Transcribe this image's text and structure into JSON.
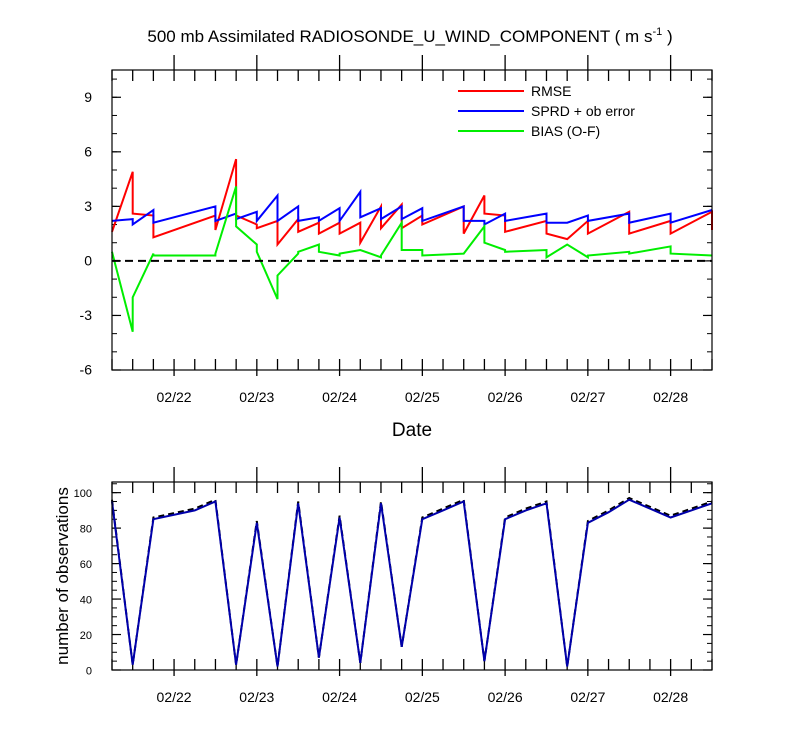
{
  "title": {
    "main": "500 mb Assimilated RADIOSONDE_U_WIND_COMPONENT ( m s",
    "sup": "-1",
    "close": " )"
  },
  "top_xlabel": "Date",
  "bottom_ylabel": "number of observations",
  "colors": {
    "rmse": "#ff0000",
    "sprd": "#0000ff",
    "bias": "#00ee00",
    "zero": "#000000",
    "nobs_a": "#000000",
    "nobs_b": "#0000aa"
  },
  "chart_data": [
    {
      "type": "line",
      "panel": "top",
      "title": "500 mb Assimilated RADIOSONDE_U_WIND_COMPONENT ( m s-1 )",
      "xlabel": "Date",
      "ylabel": "",
      "xlim": [
        21.25,
        28.5
      ],
      "ylim": [
        -6,
        10.5
      ],
      "yticks": [
        -6,
        -3,
        0,
        3,
        6,
        9
      ],
      "ytick_labels": [
        "-6",
        "-3",
        "0",
        "3",
        "6",
        "9"
      ],
      "xticks": [
        22,
        23,
        24,
        25,
        26,
        27,
        28
      ],
      "xtick_labels": [
        "02/22",
        "02/23",
        "02/24",
        "02/25",
        "02/26",
        "02/27",
        "02/28"
      ],
      "legend_position": "top-right",
      "series": [
        {
          "name": "RMSE",
          "color": "#ff0000",
          "points": [
            [
              21.25,
              1.6
            ],
            [
              21.5,
              4.9
            ],
            [
              21.5,
              2.6
            ],
            [
              21.75,
              2.5
            ],
            [
              21.75,
              1.3
            ],
            [
              22.5,
              2.5
            ],
            [
              22.5,
              1.7
            ],
            [
              22.75,
              5.6
            ],
            [
              22.75,
              2.5
            ],
            [
              23.0,
              2.0
            ],
            [
              23.0,
              1.8
            ],
            [
              23.25,
              2.2
            ],
            [
              23.25,
              0.9
            ],
            [
              23.5,
              2.3
            ],
            [
              23.5,
              1.6
            ],
            [
              23.75,
              2.1
            ],
            [
              23.75,
              1.5
            ],
            [
              24.0,
              2.1
            ],
            [
              24.0,
              1.5
            ],
            [
              24.25,
              2.1
            ],
            [
              24.25,
              1.0
            ],
            [
              24.5,
              3.0
            ],
            [
              24.5,
              1.8
            ],
            [
              24.75,
              3.1
            ],
            [
              24.75,
              1.8
            ],
            [
              25.0,
              2.5
            ],
            [
              25.0,
              2.0
            ],
            [
              25.5,
              3.0
            ],
            [
              25.5,
              1.5
            ],
            [
              25.75,
              3.6
            ],
            [
              25.75,
              2.6
            ],
            [
              26.0,
              2.5
            ],
            [
              26.0,
              1.6
            ],
            [
              26.5,
              2.2
            ],
            [
              26.5,
              1.5
            ],
            [
              26.75,
              1.2
            ],
            [
              27.0,
              2.2
            ],
            [
              27.0,
              1.5
            ],
            [
              27.5,
              2.7
            ],
            [
              27.5,
              1.5
            ],
            [
              28.0,
              2.2
            ],
            [
              28.0,
              1.5
            ],
            [
              28.5,
              2.7
            ],
            [
              28.5,
              1.7
            ]
          ]
        },
        {
          "name": "SPRD + ob error",
          "color": "#0000ff",
          "points": [
            [
              21.25,
              2.2
            ],
            [
              21.5,
              2.3
            ],
            [
              21.5,
              2.0
            ],
            [
              21.75,
              2.8
            ],
            [
              21.75,
              2.1
            ],
            [
              22.5,
              3.0
            ],
            [
              22.5,
              2.2
            ],
            [
              22.75,
              2.6
            ],
            [
              22.75,
              2.3
            ],
            [
              23.0,
              2.7
            ],
            [
              23.0,
              2.2
            ],
            [
              23.25,
              3.6
            ],
            [
              23.25,
              2.2
            ],
            [
              23.5,
              3.0
            ],
            [
              23.5,
              2.2
            ],
            [
              23.75,
              2.4
            ],
            [
              23.75,
              2.2
            ],
            [
              24.0,
              2.9
            ],
            [
              24.0,
              2.2
            ],
            [
              24.25,
              3.8
            ],
            [
              24.25,
              2.4
            ],
            [
              24.5,
              2.9
            ],
            [
              24.5,
              2.3
            ],
            [
              24.75,
              3.0
            ],
            [
              24.75,
              2.3
            ],
            [
              25.0,
              2.9
            ],
            [
              25.0,
              2.2
            ],
            [
              25.5,
              3.0
            ],
            [
              25.5,
              2.2
            ],
            [
              25.75,
              2.2
            ],
            [
              25.75,
              2.0
            ],
            [
              26.0,
              2.6
            ],
            [
              26.0,
              2.2
            ],
            [
              26.5,
              2.6
            ],
            [
              26.5,
              2.1
            ],
            [
              26.75,
              2.1
            ],
            [
              26.75,
              2.1
            ],
            [
              27.0,
              2.5
            ],
            [
              27.0,
              2.2
            ],
            [
              27.5,
              2.6
            ],
            [
              27.5,
              2.1
            ],
            [
              28.0,
              2.6
            ],
            [
              28.0,
              2.1
            ],
            [
              28.5,
              2.8
            ]
          ]
        },
        {
          "name": "BIAS (O-F)",
          "color": "#00ee00",
          "points": [
            [
              21.25,
              0.5
            ],
            [
              21.5,
              -3.9
            ],
            [
              21.5,
              -2.0
            ],
            [
              21.75,
              0.4
            ],
            [
              21.75,
              0.3
            ],
            [
              22.5,
              0.3
            ],
            [
              22.5,
              0.4
            ],
            [
              22.75,
              4.1
            ],
            [
              22.75,
              1.9
            ],
            [
              23.0,
              0.9
            ],
            [
              23.0,
              0.5
            ],
            [
              23.25,
              -2.1
            ],
            [
              23.25,
              -0.8
            ],
            [
              23.5,
              0.4
            ],
            [
              23.5,
              0.5
            ],
            [
              23.75,
              0.9
            ],
            [
              23.75,
              0.5
            ],
            [
              24.0,
              0.3
            ],
            [
              24.0,
              0.4
            ],
            [
              24.25,
              0.6
            ],
            [
              24.25,
              0.6
            ],
            [
              24.5,
              0.2
            ],
            [
              24.5,
              0.3
            ],
            [
              24.75,
              2.1
            ],
            [
              24.75,
              0.6
            ],
            [
              25.0,
              0.6
            ],
            [
              25.0,
              0.3
            ],
            [
              25.5,
              0.4
            ],
            [
              25.5,
              0.4
            ],
            [
              25.75,
              1.9
            ],
            [
              25.75,
              1.0
            ],
            [
              26.0,
              0.6
            ],
            [
              26.0,
              0.5
            ],
            [
              26.5,
              0.6
            ],
            [
              26.5,
              0.2
            ],
            [
              26.75,
              0.9
            ],
            [
              27.0,
              0.2
            ],
            [
              27.0,
              0.3
            ],
            [
              27.5,
              0.5
            ],
            [
              27.5,
              0.4
            ],
            [
              28.0,
              0.8
            ],
            [
              28.0,
              0.4
            ],
            [
              28.5,
              0.3
            ]
          ]
        },
        {
          "name": "zero line",
          "color": "#000000",
          "dashed": true,
          "points": [
            [
              21.25,
              0
            ],
            [
              28.5,
              0
            ]
          ]
        }
      ],
      "legend": [
        "RMSE",
        "SPRD + ob error",
        "BIAS (O-F)"
      ]
    },
    {
      "type": "line",
      "panel": "bottom",
      "xlabel": "",
      "ylabel": "number of observations",
      "xlim": [
        21.25,
        28.5
      ],
      "ylim": [
        0,
        106
      ],
      "yticks": [
        0,
        20,
        40,
        60,
        80,
        100
      ],
      "ytick_labels": [
        "0",
        "20",
        "40",
        "60",
        "80",
        "100"
      ],
      "xticks": [
        22,
        23,
        24,
        25,
        26,
        27,
        28
      ],
      "xtick_labels": [
        "02/22",
        "02/23",
        "02/24",
        "02/25",
        "02/26",
        "02/27",
        "02/28"
      ],
      "x": [
        21.25,
        21.5,
        21.75,
        22.25,
        22.5,
        22.75,
        23.0,
        23.25,
        23.5,
        23.75,
        24.0,
        24.25,
        24.5,
        24.75,
        25.0,
        25.25,
        25.5,
        25.75,
        26.0,
        26.25,
        26.5,
        26.75,
        27.0,
        27.25,
        27.5,
        27.75,
        28.0,
        28.25,
        28.5
      ],
      "series": [
        {
          "name": "observations (total)",
          "color": "#000000",
          "dashed": true,
          "values": [
            96,
            3,
            86,
            91,
            96,
            3,
            84,
            2,
            95,
            7,
            87,
            4,
            95,
            13,
            86,
            91,
            96,
            5,
            86,
            91,
            95,
            2,
            84,
            90,
            97,
            92,
            87,
            91,
            95
          ]
        },
        {
          "name": "observations (assimilated)",
          "color": "#0000aa",
          "dashed": false,
          "values": [
            95,
            3,
            85,
            90,
            95,
            3,
            83,
            2,
            94,
            7,
            86,
            4,
            94,
            13,
            85,
            90,
            95,
            5,
            85,
            90,
            94,
            2,
            83,
            89,
            96,
            91,
            86,
            90,
            94
          ]
        }
      ]
    }
  ]
}
